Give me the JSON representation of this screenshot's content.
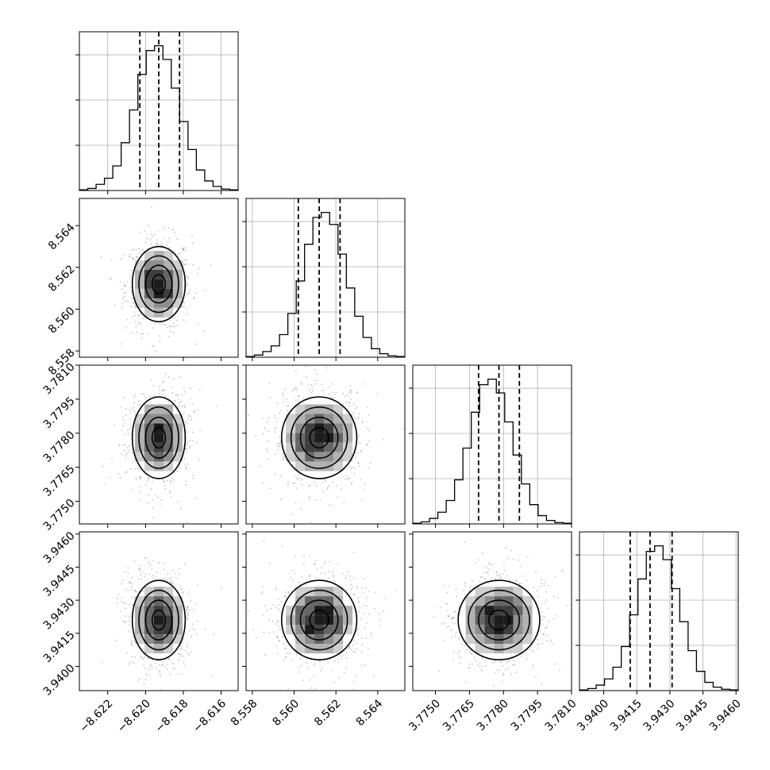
{
  "chart_data": {
    "type": "corner",
    "parameters": [
      {
        "range": [
          -8.6235,
          -8.6151
        ],
        "median": -8.6193,
        "quantiles": [
          -8.6203,
          -8.6193,
          -8.6182
        ],
        "sigma": 0.0007,
        "ticks": [
          "−8.622",
          "−8.620",
          "−8.618",
          "−8.616"
        ],
        "tick_values": [
          -8.622,
          -8.62,
          -8.618,
          -8.616
        ],
        "hist_counts": [
          1,
          3,
          9,
          18,
          36,
          70,
          118,
          170,
          205,
          212,
          192,
          150,
          101,
          60,
          30,
          14,
          6,
          2,
          1
        ]
      },
      {
        "range": [
          8.5577,
          8.5653
        ],
        "median": 8.5612,
        "quantiles": [
          8.5602,
          8.5612,
          8.5622
        ],
        "sigma": 0.0009,
        "ticks": [
          "8.558",
          "8.560",
          "8.562",
          "8.564"
        ],
        "tick_values": [
          8.558,
          8.56,
          8.562,
          8.564
        ],
        "hist_counts": [
          1,
          3,
          8,
          16,
          32,
          62,
          108,
          160,
          198,
          205,
          188,
          146,
          98,
          58,
          28,
          12,
          5,
          2,
          1
        ]
      },
      {
        "range": [
          3.774,
          3.781
        ],
        "median": 3.7778,
        "quantiles": [
          3.7769,
          3.7778,
          3.7787
        ],
        "sigma": 0.0009,
        "ticks": [
          "3.7750",
          "3.7765",
          "3.7780",
          "3.7795",
          "3.7810"
        ],
        "tick_values": [
          3.775,
          3.7765,
          3.778,
          3.7795,
          3.781
        ],
        "hist_counts": [
          1,
          3,
          8,
          17,
          34,
          64,
          110,
          162,
          202,
          210,
          190,
          148,
          100,
          58,
          28,
          12,
          5,
          2,
          1
        ]
      },
      {
        "range": [
          3.9389,
          3.9461
        ],
        "median": 3.9421,
        "quantiles": [
          3.9412,
          3.9421,
          3.9431
        ],
        "sigma": 0.0009,
        "ticks": [
          "3.9400",
          "3.9415",
          "3.9430",
          "3.9445",
          "3.9460"
        ],
        "tick_values": [
          3.94,
          3.9415,
          3.943,
          3.9445,
          3.946
        ],
        "hist_counts": [
          1,
          3,
          8,
          17,
          34,
          64,
          110,
          162,
          202,
          210,
          190,
          148,
          100,
          58,
          28,
          12,
          5,
          2,
          1
        ]
      }
    ],
    "contour_levels_sigma": [
      0.5,
      1.0,
      1.5,
      2.0
    ],
    "grid": true,
    "colors": {
      "ink": "#000000",
      "grid": "#b0b0b0",
      "scatter": "#555555"
    }
  }
}
